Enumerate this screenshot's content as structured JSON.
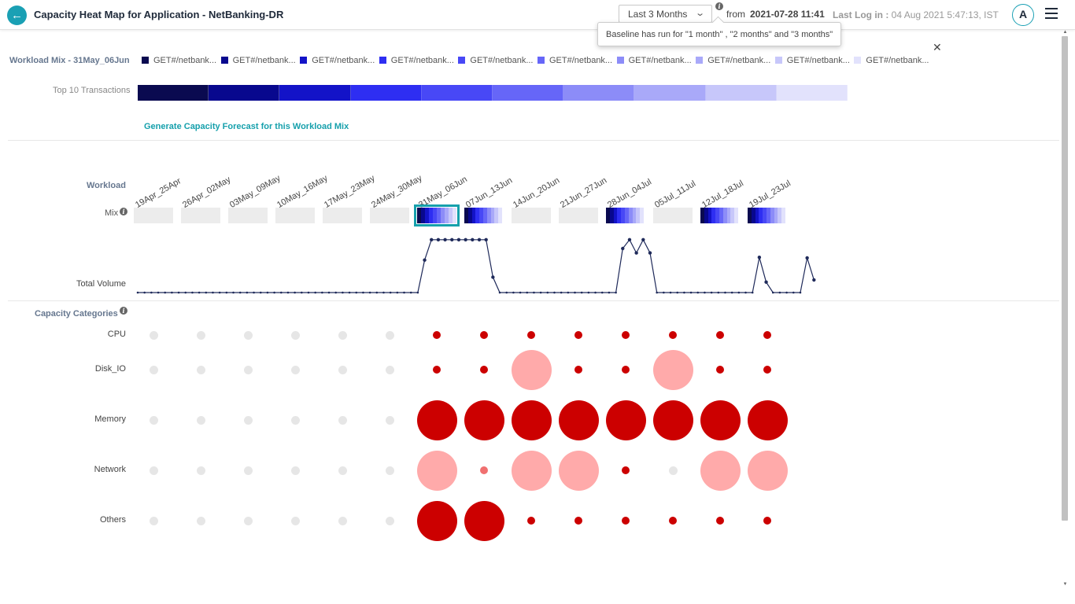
{
  "header": {
    "title": "Capacity Heat Map for Application - NetBanking-DR",
    "period": "Last 3 Months",
    "from_label": "from",
    "from_date": "2021-07-28 11:41",
    "last_login_label": "Last Log in :",
    "last_login_value": "04 Aug 2021 5:47:13, IST",
    "avatar": "A",
    "tooltip": "Baseline has run for \"1 month\" , \"2 months\" and \"3 months\""
  },
  "workload_mix": {
    "title": "Workload Mix - 31May_06Jun",
    "legend": [
      {
        "label": "GET#/netbank...",
        "color": "#0a0a50"
      },
      {
        "label": "GET#/netbank...",
        "color": "#08088e"
      },
      {
        "label": "GET#/netbank...",
        "color": "#1313c8"
      },
      {
        "label": "GET#/netbank...",
        "color": "#2e2ef2"
      },
      {
        "label": "GET#/netbank...",
        "color": "#4848f6"
      },
      {
        "label": "GET#/netbank...",
        "color": "#6666f8"
      },
      {
        "label": "GET#/netbank...",
        "color": "#8c8cf8"
      },
      {
        "label": "GET#/netbank...",
        "color": "#a9a9f9"
      },
      {
        "label": "GET#/netbank...",
        "color": "#c7c7fa"
      },
      {
        "label": "GET#/netbank...",
        "color": "#e2e2fc"
      }
    ],
    "top10_label": "Top 10 Transactions",
    "forecast_link": "Generate Capacity Forecast for this Workload Mix"
  },
  "timeline": {
    "workload_label": "Workload",
    "mix_label": "Mix",
    "total_volume_label": "Total Volume",
    "weeks": [
      {
        "label": "19Apr_25Apr",
        "has_mix": false,
        "selected": false
      },
      {
        "label": "26Apr_02May",
        "has_mix": false,
        "selected": false
      },
      {
        "label": "03May_09May",
        "has_mix": false,
        "selected": false
      },
      {
        "label": "10May_16May",
        "has_mix": false,
        "selected": false
      },
      {
        "label": "17May_23May",
        "has_mix": false,
        "selected": false
      },
      {
        "label": "24May_30May",
        "has_mix": false,
        "selected": false
      },
      {
        "label": "31May_06Jun",
        "has_mix": true,
        "selected": true
      },
      {
        "label": "07Jun_13Jun",
        "has_mix": true,
        "selected": false
      },
      {
        "label": "14Jun_20Jun",
        "has_mix": false,
        "selected": false
      },
      {
        "label": "21Jun_27Jun",
        "has_mix": false,
        "selected": false
      },
      {
        "label": "28Jun_04Jul",
        "has_mix": true,
        "selected": false
      },
      {
        "label": "05Jul_11Jul",
        "has_mix": false,
        "selected": false
      },
      {
        "label": "12Jul_18Jul",
        "has_mix": true,
        "selected": false
      },
      {
        "label": "19Jul_23Jul",
        "has_mix": true,
        "selected": false
      }
    ],
    "volume": [
      0,
      0,
      0,
      0,
      0,
      0,
      0,
      0,
      0,
      0,
      0,
      0,
      0,
      0,
      0,
      0,
      0,
      0,
      0,
      0,
      0,
      0,
      0,
      0,
      0,
      0,
      0,
      0,
      0,
      0,
      0,
      0,
      0,
      0,
      0,
      0,
      0,
      0,
      0,
      0,
      0,
      0,
      0.59,
      0.96,
      0.96,
      0.96,
      0.96,
      0.96,
      0.96,
      0.96,
      0.96,
      0.96,
      0.28,
      0,
      0,
      0,
      0,
      0,
      0,
      0,
      0,
      0,
      0,
      0,
      0,
      0,
      0,
      0,
      0,
      0,
      0,
      0.8,
      0.96,
      0.72,
      0.96,
      0.72,
      0,
      0,
      0,
      0,
      0,
      0,
      0,
      0,
      0,
      0,
      0,
      0,
      0,
      0,
      0,
      0.64,
      0.19,
      0,
      0,
      0,
      0,
      0,
      0.63,
      0.23
    ]
  },
  "capacity": {
    "title": "Capacity Categories",
    "categories": [
      {
        "name": "CPU",
        "cells": [
          "n",
          "n",
          "n",
          "n",
          "n",
          "n",
          "s",
          "s",
          "s",
          "s",
          "s",
          "s",
          "s",
          "s"
        ]
      },
      {
        "name": "Disk_IO",
        "cells": [
          "n",
          "n",
          "n",
          "n",
          "n",
          "n",
          "s",
          "s",
          "lp",
          "s",
          "s",
          "lp",
          "s",
          "s"
        ]
      },
      {
        "name": "Memory",
        "cells": [
          "n",
          "n",
          "n",
          "n",
          "n",
          "n",
          "lr",
          "lr",
          "lr",
          "lr",
          "lr",
          "lr",
          "lr",
          "lr"
        ]
      },
      {
        "name": "Network",
        "cells": [
          "n",
          "n",
          "n",
          "n",
          "n",
          "n",
          "lp",
          "sp",
          "lp",
          "lp",
          "s",
          "n",
          "lp",
          "lp"
        ]
      },
      {
        "name": "Others",
        "cells": [
          "n",
          "n",
          "n",
          "n",
          "n",
          "n",
          "lr",
          "lr",
          "s",
          "s",
          "s",
          "s",
          "s",
          "s"
        ]
      }
    ]
  },
  "colors": {
    "accent": "#16a0ac",
    "risk_high": "#cc0000",
    "risk_medium": "#ffaaaa",
    "neutral": "#e6e6e6"
  }
}
